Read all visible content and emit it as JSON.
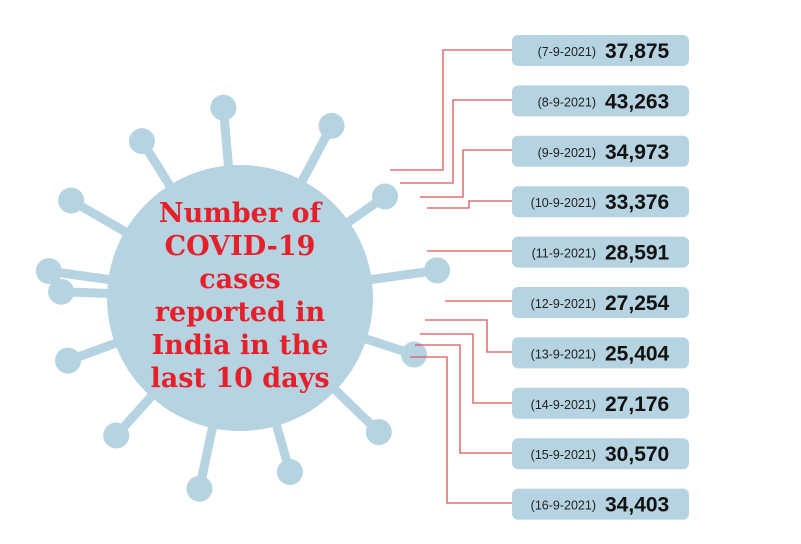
{
  "chart_data": {
    "type": "table",
    "title": [
      "Number of",
      "COVID-19",
      "cases",
      "reported in",
      "India in the",
      "last 10 days"
    ],
    "categories": [
      "(7-9-2021)",
      "(8-9-2021)",
      "(9-9-2021)",
      "(10-9-2021)",
      "(11-9-2021)",
      "(12-9-2021)",
      "(13-9-2021)",
      "(14-9-2021)",
      "(15-9-2021)",
      "(16-9-2021)"
    ],
    "labels": [
      "37,875",
      "43,263",
      "34,973",
      "33,376",
      "28,591",
      "27,254",
      "25,404",
      "27,176",
      "30,570",
      "34,403"
    ],
    "values": [
      37875,
      43263,
      34973,
      33376,
      28591,
      27254,
      25404,
      27176,
      30570,
      34403
    ]
  },
  "colors": {
    "virus": "#b5d3e1",
    "box": "#b5d3e1",
    "title": "#e5202b",
    "leader": "#d9535b"
  }
}
